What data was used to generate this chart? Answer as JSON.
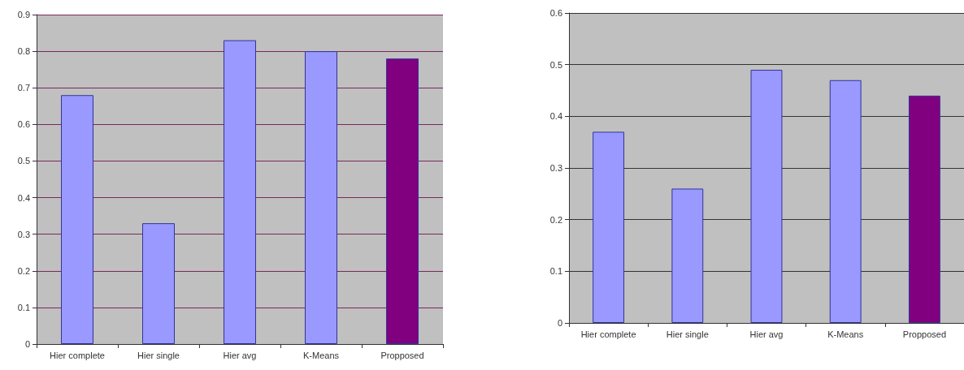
{
  "chart_data": [
    {
      "type": "bar",
      "categories": [
        "Hier complete",
        "Hier single",
        "Hier avg",
        "K-Means",
        "Propposed"
      ],
      "values": [
        0.68,
        0.33,
        0.83,
        0.8,
        0.78
      ],
      "colors": [
        "#9999ff",
        "#9999ff",
        "#9999ff",
        "#9999ff",
        "#800080"
      ],
      "ylim": [
        0,
        0.9
      ],
      "yticks": [
        0,
        0.1,
        0.2,
        0.3,
        0.4,
        0.5,
        0.6,
        0.7,
        0.8,
        0.9
      ],
      "grid": "y"
    },
    {
      "type": "bar",
      "categories": [
        "Hier complete",
        "Hier single",
        "Hier avg",
        "K-Means",
        "Propposed"
      ],
      "values": [
        0.37,
        0.26,
        0.49,
        0.47,
        0.44
      ],
      "colors": [
        "#9999ff",
        "#9999ff",
        "#9999ff",
        "#9999ff",
        "#800080"
      ],
      "ylim": [
        0,
        0.6
      ],
      "yticks": [
        0,
        0.1,
        0.2,
        0.3,
        0.4,
        0.5,
        0.6
      ],
      "grid": "y"
    }
  ]
}
